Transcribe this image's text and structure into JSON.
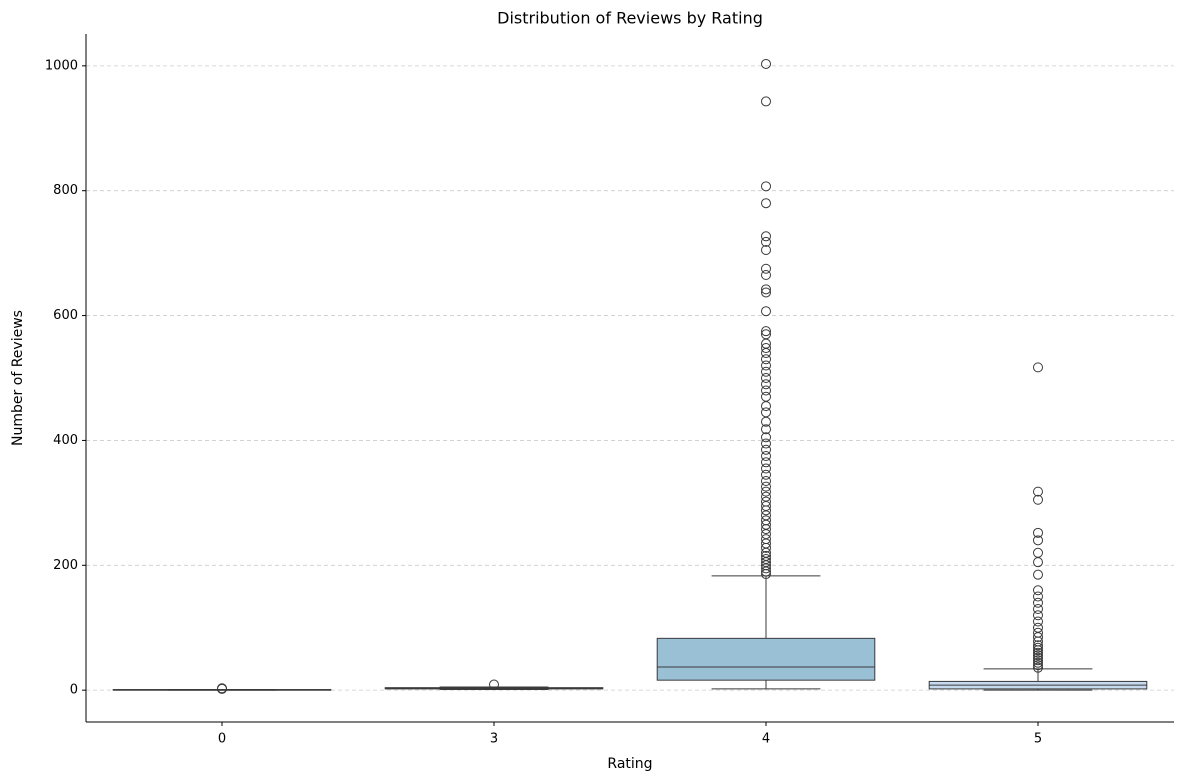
{
  "chart_data": {
    "type": "box",
    "title": "Distribution of Reviews by Rating",
    "xlabel": "Rating",
    "ylabel": "Number of Reviews",
    "categories": [
      "0",
      "3",
      "4",
      "5"
    ],
    "boxes": [
      {
        "whislo": 0,
        "q1": 0,
        "med": 0,
        "q3": 1,
        "whishi": 1,
        "fliers": [
          2,
          3
        ],
        "color": "#4f8fc0"
      },
      {
        "whislo": 1,
        "q1": 2,
        "med": 3,
        "q3": 4,
        "whishi": 5,
        "fliers": [
          9
        ],
        "color": "#6aaed6"
      },
      {
        "whislo": 2,
        "q1": 16,
        "med": 37,
        "q3": 83,
        "whishi": 183,
        "fliers": [
          186,
          190,
          195,
          200,
          205,
          210,
          215,
          220,
          228,
          235,
          242,
          250,
          258,
          265,
          272,
          280,
          288,
          295,
          302,
          310,
          318,
          326,
          335,
          345,
          355,
          365,
          375,
          385,
          395,
          405,
          418,
          430,
          445,
          455,
          470,
          480,
          490,
          500,
          510,
          520,
          530,
          540,
          548,
          555,
          570,
          575,
          607,
          637,
          642,
          665,
          675,
          705,
          718,
          727,
          780,
          807,
          943,
          1003
        ],
        "color": "#9ac0d5"
      },
      {
        "whislo": 0,
        "q1": 2,
        "med": 8,
        "q3": 14,
        "whishi": 34,
        "fliers": [
          36,
          40,
          44,
          48,
          52,
          56,
          60,
          64,
          68,
          72,
          78,
          85,
          92,
          100,
          110,
          120,
          130,
          140,
          150,
          160,
          185,
          205,
          220,
          240,
          252,
          305,
          318,
          517
        ],
        "color": "#c6dbef"
      }
    ],
    "ylim": [
      -51,
      1051
    ],
    "yticks": [
      0,
      200,
      400,
      600,
      800,
      1000
    ],
    "grid": true
  }
}
